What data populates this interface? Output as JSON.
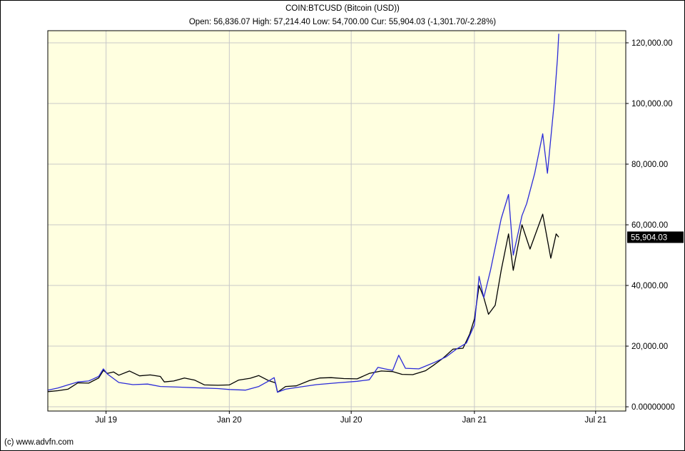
{
  "header": {
    "title": "COIN:BTCUSD (Bitcoin (USD))",
    "quote": "Open: 56,836.07 High: 57,214.40 Low: 54,700.00 Cur: 55,904.03 (-1,301.70/-2.28%)"
  },
  "footer": {
    "copyright": "(c) www.advfn.com"
  },
  "colors": {
    "plot_background": "#ffffe0",
    "grid": "#c8c8c8",
    "price_line": "#000000",
    "comparison_line": "#2b2bd8",
    "current_label_bg": "#000000",
    "current_label_text": "#ffffff"
  },
  "chart_data": {
    "type": "line",
    "title": "COIN:BTCUSD (Bitcoin (USD))",
    "x_tick_labels": [
      "Jul 19",
      "Jan 20",
      "Jul 20",
      "Jan 21",
      "Jul 21"
    ],
    "x_ticks": [
      "2019-07-01",
      "2020-01-01",
      "2020-07-01",
      "2021-01-01",
      "2021-07-01"
    ],
    "x_range": [
      "2019-04-05",
      "2021-08-15"
    ],
    "y_tick_labels": [
      "0.00000000",
      "20,000.00",
      "40,000.00",
      "60,000.00",
      "80,000.00",
      "100,000.00",
      "120,000.00"
    ],
    "y_ticks": [
      0,
      20000,
      40000,
      60000,
      80000,
      100000,
      120000
    ],
    "ylim": [
      -1400,
      124000
    ],
    "y_axis_side": "right",
    "grid": true,
    "current_value": 55904.03,
    "current_value_label": "55,904.03",
    "series": [
      {
        "color": "#000000",
        "points": [
          [
            "2019-04-05",
            5000
          ],
          [
            "2019-04-20",
            5300
          ],
          [
            "2019-05-05",
            5800
          ],
          [
            "2019-05-20",
            7900
          ],
          [
            "2019-06-05",
            7800
          ],
          [
            "2019-06-20",
            9500
          ],
          [
            "2019-06-27",
            12000
          ],
          [
            "2019-07-03",
            11000
          ],
          [
            "2019-07-12",
            11500
          ],
          [
            "2019-07-20",
            10400
          ],
          [
            "2019-08-05",
            11800
          ],
          [
            "2019-08-20",
            10200
          ],
          [
            "2019-09-05",
            10500
          ],
          [
            "2019-09-20",
            10000
          ],
          [
            "2019-09-26",
            8200
          ],
          [
            "2019-10-10",
            8500
          ],
          [
            "2019-10-26",
            9500
          ],
          [
            "2019-11-10",
            8800
          ],
          [
            "2019-11-25",
            7200
          ],
          [
            "2019-12-15",
            7100
          ],
          [
            "2020-01-01",
            7200
          ],
          [
            "2020-01-15",
            8800
          ],
          [
            "2020-02-01",
            9400
          ],
          [
            "2020-02-14",
            10300
          ],
          [
            "2020-02-28",
            8700
          ],
          [
            "2020-03-10",
            7900
          ],
          [
            "2020-03-13",
            4800
          ],
          [
            "2020-03-25",
            6700
          ],
          [
            "2020-04-10",
            6900
          ],
          [
            "2020-04-30",
            8700
          ],
          [
            "2020-05-15",
            9500
          ],
          [
            "2020-06-01",
            9600
          ],
          [
            "2020-06-20",
            9300
          ],
          [
            "2020-07-10",
            9200
          ],
          [
            "2020-07-28",
            11000
          ],
          [
            "2020-08-15",
            11800
          ],
          [
            "2020-09-01",
            11600
          ],
          [
            "2020-09-15",
            10700
          ],
          [
            "2020-10-01",
            10600
          ],
          [
            "2020-10-20",
            11900
          ],
          [
            "2020-11-01",
            13700
          ],
          [
            "2020-11-15",
            16000
          ],
          [
            "2020-11-30",
            19000
          ],
          [
            "2020-12-15",
            19300
          ],
          [
            "2020-12-25",
            24000
          ],
          [
            "2021-01-01",
            29000
          ],
          [
            "2021-01-08",
            40000
          ],
          [
            "2021-01-15",
            36000
          ],
          [
            "2021-01-22",
            30500
          ],
          [
            "2021-02-01",
            33500
          ],
          [
            "2021-02-10",
            45000
          ],
          [
            "2021-02-21",
            57000
          ],
          [
            "2021-02-28",
            45000
          ],
          [
            "2021-03-13",
            60000
          ],
          [
            "2021-03-25",
            52000
          ],
          [
            "2021-04-13",
            63500
          ],
          [
            "2021-04-25",
            49000
          ],
          [
            "2021-05-03",
            57000
          ],
          [
            "2021-05-07",
            55904
          ]
        ]
      },
      {
        "color": "#2b2bd8",
        "points": [
          [
            "2019-04-05",
            5500
          ],
          [
            "2019-04-20",
            6200
          ],
          [
            "2019-05-05",
            7200
          ],
          [
            "2019-05-20",
            8200
          ],
          [
            "2019-06-05",
            8500
          ],
          [
            "2019-06-20",
            10000
          ],
          [
            "2019-06-27",
            12500
          ],
          [
            "2019-07-03",
            10800
          ],
          [
            "2019-07-20",
            8000
          ],
          [
            "2019-08-10",
            7300
          ],
          [
            "2019-09-01",
            7500
          ],
          [
            "2019-09-20",
            6700
          ],
          [
            "2019-10-15",
            6500
          ],
          [
            "2019-11-10",
            6300
          ],
          [
            "2019-12-15",
            6000
          ],
          [
            "2020-01-01",
            5700
          ],
          [
            "2020-01-25",
            5500
          ],
          [
            "2020-02-14",
            6700
          ],
          [
            "2020-02-28",
            8400
          ],
          [
            "2020-03-08",
            9600
          ],
          [
            "2020-03-13",
            4800
          ],
          [
            "2020-03-25",
            5800
          ],
          [
            "2020-04-15",
            6500
          ],
          [
            "2020-05-10",
            7300
          ],
          [
            "2020-06-10",
            7900
          ],
          [
            "2020-07-10",
            8400
          ],
          [
            "2020-07-28",
            8900
          ],
          [
            "2020-08-10",
            13000
          ],
          [
            "2020-08-20",
            12500
          ],
          [
            "2020-09-01",
            12000
          ],
          [
            "2020-09-10",
            17000
          ],
          [
            "2020-09-20",
            12700
          ],
          [
            "2020-10-10",
            12500
          ],
          [
            "2020-11-01",
            14500
          ],
          [
            "2020-11-20",
            16500
          ],
          [
            "2020-12-05",
            19000
          ],
          [
            "2020-12-20",
            21000
          ],
          [
            "2021-01-01",
            27000
          ],
          [
            "2021-01-08",
            43000
          ],
          [
            "2021-01-15",
            36000
          ],
          [
            "2021-01-25",
            45000
          ],
          [
            "2021-02-10",
            62000
          ],
          [
            "2021-02-21",
            70000
          ],
          [
            "2021-02-28",
            50000
          ],
          [
            "2021-03-13",
            63000
          ],
          [
            "2021-03-20",
            67000
          ],
          [
            "2021-04-01",
            77000
          ],
          [
            "2021-04-13",
            90000
          ],
          [
            "2021-04-20",
            77000
          ],
          [
            "2021-04-30",
            100000
          ],
          [
            "2021-05-05",
            115000
          ],
          [
            "2021-05-07",
            123000
          ]
        ]
      }
    ]
  }
}
